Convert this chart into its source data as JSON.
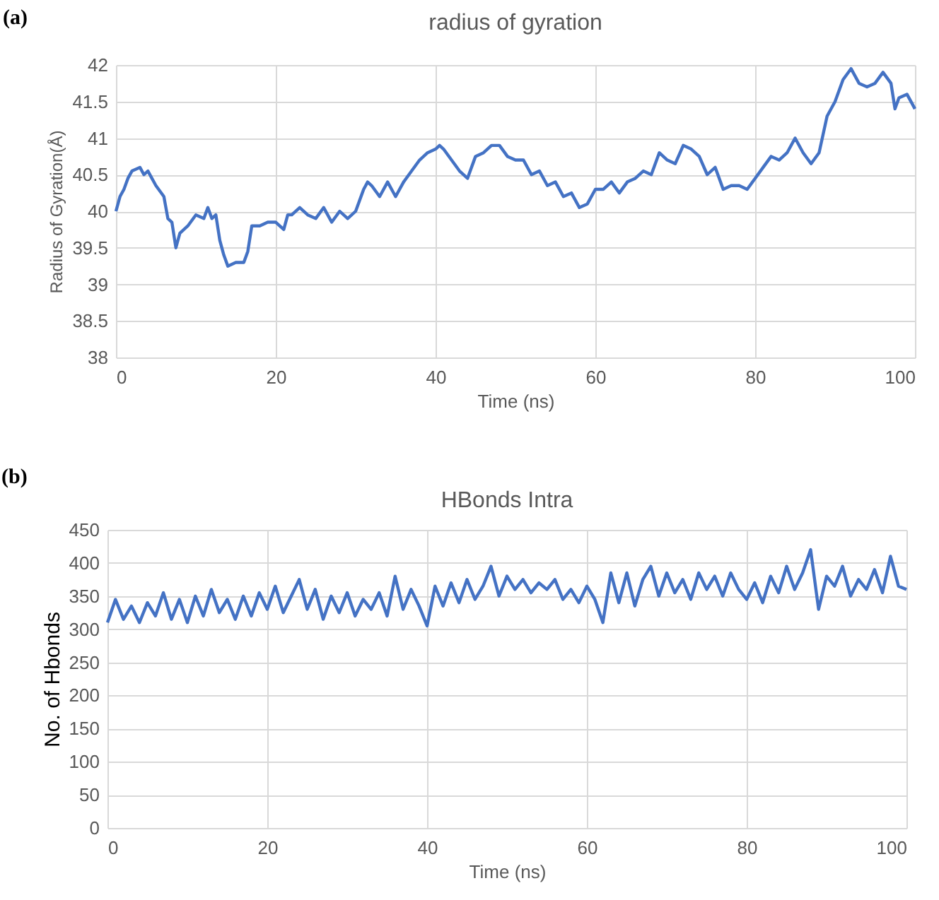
{
  "chart_data": [
    {
      "type": "line",
      "title": "radius of gyration",
      "xlabel": "Time (ns)",
      "ylabel": "Radius of Gyration(Å)",
      "annotations": [
        "(a)"
      ],
      "xlim": [
        0,
        100
      ],
      "xticks": [
        0,
        20,
        40,
        60,
        80,
        100
      ],
      "ylim": [
        38,
        42
      ],
      "yticks": [
        38,
        38.5,
        39,
        39.5,
        40,
        40.5,
        41,
        41.5,
        42
      ],
      "grid": true,
      "line_style": "solid",
      "marker": "none",
      "x": [
        0,
        0.5,
        1,
        1.5,
        2,
        3,
        3.5,
        4,
        5,
        6,
        6.5,
        7,
        7.5,
        8,
        9,
        10,
        11,
        11.5,
        12,
        12.5,
        13,
        13.5,
        14,
        15,
        16,
        16.5,
        17,
        18,
        19,
        20,
        21,
        21.5,
        22,
        23,
        24,
        25,
        26,
        27,
        28,
        29,
        30,
        31,
        31.5,
        32,
        33,
        34,
        34.5,
        35,
        36,
        37,
        38,
        39,
        40,
        40.5,
        41,
        42,
        43,
        44,
        45,
        46,
        47,
        48,
        49,
        50,
        51,
        52,
        53,
        54,
        55,
        56,
        57,
        58,
        59,
        60,
        61,
        62,
        63,
        64,
        65,
        66,
        67,
        68,
        69,
        70,
        71,
        72,
        73,
        74,
        75,
        76,
        77,
        78,
        79,
        80,
        81,
        82,
        83,
        84,
        85,
        86,
        87,
        88,
        89,
        90,
        91,
        92,
        93,
        94,
        95,
        96,
        97,
        97.5,
        98,
        99,
        100
      ],
      "series": [
        {
          "color": "#4472c4",
          "values": [
            40.0,
            40.2,
            40.3,
            40.45,
            40.55,
            40.6,
            40.5,
            40.55,
            40.35,
            40.2,
            39.9,
            39.85,
            39.5,
            39.7,
            39.8,
            39.95,
            39.9,
            40.05,
            39.9,
            39.95,
            39.6,
            39.4,
            39.25,
            39.3,
            39.3,
            39.45,
            39.8,
            39.8,
            39.85,
            39.85,
            39.75,
            39.95,
            39.95,
            40.05,
            39.95,
            39.9,
            40.05,
            39.85,
            40.0,
            39.9,
            40.0,
            40.3,
            40.4,
            40.35,
            40.2,
            40.4,
            40.3,
            40.2,
            40.4,
            40.55,
            40.7,
            40.8,
            40.85,
            40.9,
            40.85,
            40.7,
            40.55,
            40.45,
            40.75,
            40.8,
            40.9,
            40.9,
            40.75,
            40.7,
            40.7,
            40.5,
            40.55,
            40.35,
            40.4,
            40.2,
            40.25,
            40.05,
            40.1,
            40.3,
            40.3,
            40.4,
            40.25,
            40.4,
            40.45,
            40.55,
            40.5,
            40.8,
            40.7,
            40.65,
            40.9,
            40.85,
            40.75,
            40.5,
            40.6,
            40.3,
            40.35,
            40.35,
            40.3,
            40.45,
            40.6,
            40.75,
            40.7,
            40.8,
            41.0,
            40.8,
            40.65,
            40.8,
            41.3,
            41.5,
            41.8,
            41.95,
            41.75,
            41.7,
            41.75,
            41.9,
            41.75,
            41.4,
            41.55,
            41.6,
            41.4
          ]
        }
      ]
    },
    {
      "type": "line",
      "title": "HBonds Intra",
      "xlabel": "Time (ns)",
      "ylabel": "No. of Hbonds",
      "annotations": [
        "(b)"
      ],
      "xlim": [
        0,
        100
      ],
      "xticks": [
        0,
        20,
        40,
        60,
        80,
        100
      ],
      "ylim": [
        0,
        450
      ],
      "yticks": [
        0,
        50,
        100,
        150,
        200,
        250,
        300,
        350,
        400,
        450
      ],
      "grid": true,
      "line_style": "solid",
      "marker": "none",
      "x": [
        0,
        1,
        2,
        3,
        4,
        5,
        6,
        7,
        8,
        9,
        10,
        11,
        12,
        13,
        14,
        15,
        16,
        17,
        18,
        19,
        20,
        21,
        22,
        23,
        24,
        25,
        26,
        27,
        28,
        29,
        30,
        31,
        32,
        33,
        34,
        35,
        36,
        37,
        38,
        39,
        40,
        41,
        42,
        43,
        44,
        45,
        46,
        47,
        48,
        49,
        50,
        51,
        52,
        53,
        54,
        55,
        56,
        57,
        58,
        59,
        60,
        61,
        62,
        63,
        64,
        65,
        66,
        67,
        68,
        69,
        70,
        71,
        72,
        73,
        74,
        75,
        76,
        77,
        78,
        79,
        80,
        81,
        82,
        83,
        84,
        85,
        86,
        87,
        88,
        89,
        90,
        91,
        92,
        93,
        94,
        95,
        96,
        97,
        98,
        99,
        100
      ],
      "series": [
        {
          "color": "#4472c4",
          "values": [
            310,
            345,
            315,
            335,
            310,
            340,
            320,
            355,
            315,
            345,
            310,
            350,
            320,
            360,
            325,
            345,
            315,
            350,
            320,
            355,
            330,
            365,
            325,
            350,
            375,
            330,
            360,
            315,
            350,
            325,
            355,
            320,
            345,
            330,
            355,
            320,
            380,
            330,
            360,
            335,
            305,
            365,
            335,
            370,
            340,
            375,
            345,
            365,
            395,
            350,
            380,
            360,
            375,
            355,
            370,
            360,
            375,
            345,
            360,
            340,
            365,
            345,
            310,
            385,
            340,
            385,
            335,
            375,
            395,
            350,
            385,
            355,
            375,
            345,
            385,
            360,
            380,
            350,
            385,
            360,
            345,
            370,
            340,
            380,
            355,
            395,
            360,
            385,
            420,
            330,
            380,
            365,
            395,
            350,
            375,
            360,
            390,
            355,
            410,
            365,
            360
          ]
        }
      ]
    }
  ]
}
